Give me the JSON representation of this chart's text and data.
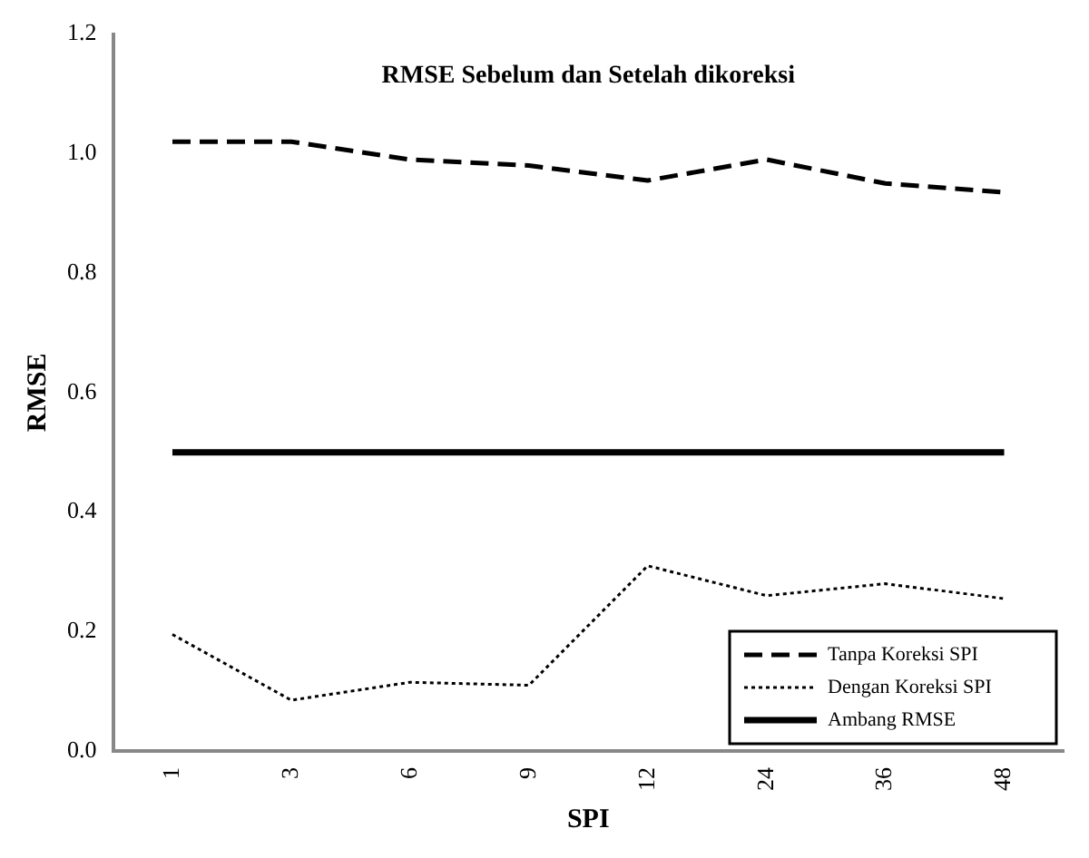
{
  "chart_data": {
    "type": "line",
    "title": "RMSE Sebelum dan Setelah dikoreksi",
    "xlabel": "SPI",
    "ylabel": "RMSE",
    "categories": [
      "1",
      "3",
      "6",
      "9",
      "12",
      "24",
      "36",
      "48"
    ],
    "series": [
      {
        "name": "Tanpa Koreksi SPI",
        "color": "#000000",
        "line_style": "dashed",
        "values": [
          1.02,
          1.02,
          0.99,
          0.98,
          0.955,
          0.99,
          0.95,
          0.935
        ]
      },
      {
        "name": "Dengan Koreksi SPI",
        "color": "#000000",
        "line_style": "dotted",
        "values": [
          0.195,
          0.085,
          0.115,
          0.11,
          0.31,
          0.26,
          0.28,
          0.255
        ]
      },
      {
        "name": "Ambang RMSE",
        "color": "#000000",
        "line_style": "solid",
        "values": [
          0.5,
          0.5,
          0.5,
          0.5,
          0.5,
          0.5,
          0.5,
          0.5
        ]
      }
    ],
    "ylim": [
      0,
      1.2
    ],
    "yticks": [
      {
        "value": 0,
        "label": "0.0"
      },
      0.2,
      0.4,
      0.6,
      0.8,
      {
        "value": 1,
        "label": "1.0"
      },
      {
        "value": 1.2,
        "label": "1.2"
      }
    ],
    "grid": false,
    "legend": "bottom right",
    "marker": "none"
  }
}
